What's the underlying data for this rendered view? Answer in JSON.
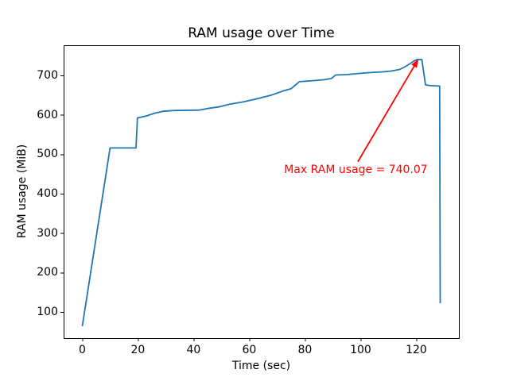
{
  "chart_data": {
    "type": "line",
    "title": "RAM usage over Time",
    "xlabel": "Time (sec)",
    "ylabel": "RAM usage (MiB)",
    "x_ticks": [
      0,
      20,
      40,
      60,
      80,
      100,
      120
    ],
    "y_ticks": [
      100,
      200,
      300,
      400,
      500,
      600,
      700
    ],
    "xlim": [
      -6.7,
      135.3
    ],
    "ylim": [
      33.6,
      776.4
    ],
    "grid": false,
    "legend": null,
    "line_color": "#1f77b4",
    "axes_color": "#000000",
    "background_color": "#ffffff",
    "series": [
      {
        "name": "RAM usage",
        "points": [
          [
            0,
            64
          ],
          [
            10,
            516
          ],
          [
            19.3,
            516
          ],
          [
            19.8,
            592
          ],
          [
            23,
            597
          ],
          [
            26,
            604
          ],
          [
            29,
            609
          ],
          [
            33,
            611
          ],
          [
            42,
            612
          ],
          [
            45,
            616
          ],
          [
            49,
            620
          ],
          [
            53,
            627
          ],
          [
            58,
            633
          ],
          [
            63,
            641
          ],
          [
            68,
            650
          ],
          [
            72,
            660
          ],
          [
            75,
            666
          ],
          [
            78,
            684
          ],
          [
            82,
            686
          ],
          [
            87,
            689
          ],
          [
            89.5,
            692
          ],
          [
            91,
            701
          ],
          [
            95,
            702
          ],
          [
            98,
            704
          ],
          [
            103,
            707
          ],
          [
            108,
            709
          ],
          [
            111,
            711
          ],
          [
            114,
            715
          ],
          [
            116,
            722
          ],
          [
            118,
            731
          ],
          [
            119.5,
            738
          ],
          [
            120.3,
            740
          ],
          [
            122,
            740.07
          ],
          [
            123.3,
            676
          ],
          [
            125,
            674
          ],
          [
            128.4,
            673
          ],
          [
            128.6,
            122
          ]
        ]
      }
    ],
    "annotation": {
      "text": "Max RAM usage = 740.07",
      "max_value": 740.07,
      "color": "#ff0000",
      "text_xy": [
        72.5,
        476
      ],
      "arrow_tail_xy": [
        99,
        481
      ],
      "arrow_head_xy": [
        120.8,
        742
      ]
    }
  }
}
